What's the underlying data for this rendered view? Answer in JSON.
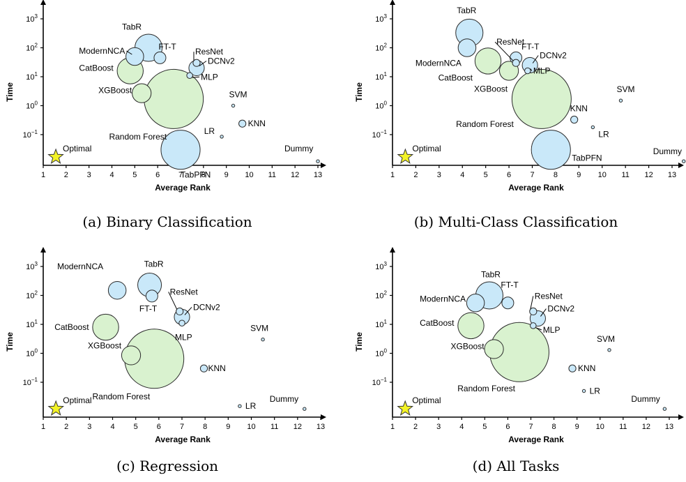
{
  "chart_data": [
    {
      "type": "scatter",
      "caption": "(a) Binary Classification",
      "xlabel": "Average Rank",
      "ylabel": "Time",
      "xlim": [
        1,
        13
      ],
      "xticks": [
        "1",
        "2",
        "3",
        "4",
        "5",
        "6",
        "7",
        "8",
        "9",
        "10",
        "11",
        "12",
        "13"
      ],
      "log_y": true,
      "optimal_label": "Optimal",
      "points": [
        {
          "name": "TabR",
          "x": 5.6,
          "y": 100,
          "size": 2.3,
          "group": "nn"
        },
        {
          "name": "ModernNCA",
          "x": 5.0,
          "y": 50,
          "size": 1.5,
          "group": "nn"
        },
        {
          "name": "FT-T",
          "x": 6.1,
          "y": 45,
          "size": 1.0,
          "group": "nn"
        },
        {
          "name": "ResNet",
          "x": 7.7,
          "y": 30,
          "size": 0.6,
          "group": "nn"
        },
        {
          "name": "DCNv2",
          "x": 7.7,
          "y": 20,
          "size": 1.3,
          "group": "nn"
        },
        {
          "name": "MLP",
          "x": 7.4,
          "y": 11,
          "size": 0.5,
          "group": "nn"
        },
        {
          "name": "CatBoost",
          "x": 4.8,
          "y": 16,
          "size": 2.2,
          "group": "tree"
        },
        {
          "name": "XGBoost",
          "x": 5.3,
          "y": 2.7,
          "size": 1.6,
          "group": "tree"
        },
        {
          "name": "Random Forest",
          "x": 6.7,
          "y": 1.7,
          "size": 5.0,
          "group": "tree"
        },
        {
          "name": "SVM",
          "x": 9.3,
          "y": 1.0,
          "size": 0.25,
          "group": "other"
        },
        {
          "name": "KNN",
          "x": 9.7,
          "y": 0.24,
          "size": 0.6,
          "group": "other"
        },
        {
          "name": "LR",
          "x": 8.8,
          "y": 0.085,
          "size": 0.25,
          "group": "other"
        },
        {
          "name": "TabPFN",
          "x": 7.0,
          "y": 0.03,
          "size": 3.3,
          "group": "nn"
        },
        {
          "name": "Dummy",
          "x": 13.0,
          "y": 0.012,
          "size": 0.25,
          "group": "other"
        }
      ]
    },
    {
      "type": "scatter",
      "caption": "(b) Multi-Class Classification",
      "xlabel": "Average Rank",
      "ylabel": "Time",
      "xlim": [
        1,
        13.5
      ],
      "xticks": [
        "1",
        "2",
        "3",
        "4",
        "5",
        "6",
        "7",
        "8",
        "9",
        "10",
        "11",
        "12",
        "13"
      ],
      "log_y": true,
      "optimal_label": "Optimal",
      "points": [
        {
          "name": "TabR",
          "x": 4.3,
          "y": 330,
          "size": 2.3,
          "group": "nn"
        },
        {
          "name": "ModernNCA",
          "x": 4.2,
          "y": 100,
          "size": 1.5,
          "group": "nn"
        },
        {
          "name": "ResNet",
          "x": 6.3,
          "y": 30,
          "size": 0.6,
          "group": "nn"
        },
        {
          "name": "FT-T",
          "x": 6.3,
          "y": 45,
          "size": 1.0,
          "group": "nn"
        },
        {
          "name": "DCNv2",
          "x": 6.9,
          "y": 25,
          "size": 1.3,
          "group": "nn"
        },
        {
          "name": "MLP",
          "x": 6.8,
          "y": 16,
          "size": 0.5,
          "group": "nn"
        },
        {
          "name": "CatBoost",
          "x": 5.1,
          "y": 35,
          "size": 2.2,
          "group": "tree"
        },
        {
          "name": "XGBoost",
          "x": 6.0,
          "y": 16,
          "size": 1.6,
          "group": "tree"
        },
        {
          "name": "Random Forest",
          "x": 7.4,
          "y": 1.7,
          "size": 5.0,
          "group": "tree"
        },
        {
          "name": "SVM",
          "x": 10.8,
          "y": 1.5,
          "size": 0.25,
          "group": "other"
        },
        {
          "name": "KNN",
          "x": 8.8,
          "y": 0.33,
          "size": 0.6,
          "group": "other"
        },
        {
          "name": "LR",
          "x": 9.6,
          "y": 0.18,
          "size": 0.25,
          "group": "other"
        },
        {
          "name": "TabPFN",
          "x": 7.8,
          "y": 0.03,
          "size": 3.3,
          "group": "nn"
        },
        {
          "name": "Dummy",
          "x": 13.5,
          "y": 0.012,
          "size": 0.25,
          "group": "other"
        }
      ]
    },
    {
      "type": "scatter",
      "caption": "(c) Regression",
      "xlabel": "Average Rank",
      "ylabel": "Time",
      "xlim": [
        1,
        13
      ],
      "xticks": [
        "1",
        "2",
        "3",
        "4",
        "5",
        "6",
        "7",
        "8",
        "9",
        "10",
        "11",
        "12",
        "13"
      ],
      "log_y": true,
      "optimal_label": "Optimal",
      "points": [
        {
          "name": "ModernNCA",
          "x": 4.2,
          "y": 150,
          "size": 1.5,
          "group": "nn"
        },
        {
          "name": "TabR",
          "x": 5.6,
          "y": 230,
          "size": 2.0,
          "group": "nn"
        },
        {
          "name": "FT-T",
          "x": 5.7,
          "y": 95,
          "size": 1.0,
          "group": "nn"
        },
        {
          "name": "ResNet",
          "x": 6.9,
          "y": 28,
          "size": 0.6,
          "group": "nn"
        },
        {
          "name": "DCNv2",
          "x": 7.0,
          "y": 18,
          "size": 1.3,
          "group": "nn"
        },
        {
          "name": "MLP",
          "x": 7.0,
          "y": 11,
          "size": 0.5,
          "group": "nn"
        },
        {
          "name": "CatBoost",
          "x": 3.7,
          "y": 8,
          "size": 2.2,
          "group": "tree"
        },
        {
          "name": "XGBoost",
          "x": 4.8,
          "y": 0.85,
          "size": 1.6,
          "group": "tree"
        },
        {
          "name": "Random Forest",
          "x": 5.8,
          "y": 0.65,
          "size": 5.0,
          "group": "tree"
        },
        {
          "name": "SVM",
          "x": 10.5,
          "y": 3.0,
          "size": 0.25,
          "group": "other"
        },
        {
          "name": "KNN",
          "x": 7.95,
          "y": 0.3,
          "size": 0.6,
          "group": "other"
        },
        {
          "name": "LR",
          "x": 9.5,
          "y": 0.015,
          "size": 0.25,
          "group": "other"
        },
        {
          "name": "Dummy",
          "x": 12.3,
          "y": 0.012,
          "size": 0.25,
          "group": "other"
        }
      ]
    },
    {
      "type": "scatter",
      "caption": "(d) All Tasks",
      "xlabel": "Average Rank",
      "ylabel": "Time",
      "xlim": [
        1,
        13.5
      ],
      "xticks": [
        "1",
        "2",
        "3",
        "4",
        "5",
        "6",
        "7",
        "8",
        "9",
        "10",
        "11",
        "12",
        "13"
      ],
      "log_y": true,
      "optimal_label": "Optimal",
      "points": [
        {
          "name": "TabR",
          "x": 5.2,
          "y": 100,
          "size": 2.3,
          "group": "nn"
        },
        {
          "name": "FT-T",
          "x": 6.0,
          "y": 55,
          "size": 1.0,
          "group": "nn"
        },
        {
          "name": "ModernNCA",
          "x": 4.6,
          "y": 55,
          "size": 1.5,
          "group": "nn"
        },
        {
          "name": "ResNet",
          "x": 7.1,
          "y": 28,
          "size": 0.6,
          "group": "nn"
        },
        {
          "name": "DCNv2",
          "x": 7.3,
          "y": 16,
          "size": 1.3,
          "group": "nn"
        },
        {
          "name": "MLP",
          "x": 7.1,
          "y": 9,
          "size": 0.5,
          "group": "nn"
        },
        {
          "name": "CatBoost",
          "x": 4.4,
          "y": 9,
          "size": 2.2,
          "group": "tree"
        },
        {
          "name": "XGBoost",
          "x": 5.4,
          "y": 1.4,
          "size": 1.6,
          "group": "tree"
        },
        {
          "name": "Random Forest",
          "x": 6.5,
          "y": 1.1,
          "size": 5.0,
          "group": "tree"
        },
        {
          "name": "SVM",
          "x": 10.4,
          "y": 1.3,
          "size": 0.25,
          "group": "other"
        },
        {
          "name": "KNN",
          "x": 8.8,
          "y": 0.3,
          "size": 0.6,
          "group": "other"
        },
        {
          "name": "LR",
          "x": 9.3,
          "y": 0.05,
          "size": 0.25,
          "group": "other"
        },
        {
          "name": "Dummy",
          "x": 12.8,
          "y": 0.012,
          "size": 0.25,
          "group": "other"
        }
      ]
    }
  ]
}
